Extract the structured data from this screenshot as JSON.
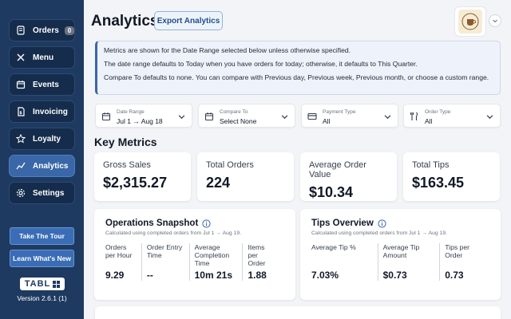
{
  "sidebar": {
    "items": [
      {
        "label": "Orders",
        "badge": "0",
        "icon": "orders-icon"
      },
      {
        "label": "Menu",
        "icon": "utensils-icon"
      },
      {
        "label": "Events",
        "icon": "calendar-icon"
      },
      {
        "label": "Invoicing",
        "icon": "invoice-icon"
      },
      {
        "label": "Loyalty",
        "icon": "star-icon"
      },
      {
        "label": "Analytics",
        "icon": "chart-line-icon",
        "active": true
      },
      {
        "label": "Settings",
        "icon": "gear-icon"
      }
    ],
    "tour_label": "Take The Tour",
    "whats_new_label": "Learn What's New",
    "logo_text": "TABL",
    "version": "Version 2.6.1 (1)"
  },
  "header": {
    "title": "Analytics",
    "export_label": "Export Analytics"
  },
  "info": {
    "line1": "Metrics are shown for the Date Range selected below unless otherwise specified.",
    "line2": "The date range defaults to Today when you have orders for today; otherwise, it defaults to This Quarter.",
    "line3": "Compare To defaults to none. You can compare with Previous day, Previous week, Previous month, or choose a custom range."
  },
  "filters": [
    {
      "label": "Date Range",
      "value": "Jul 1 → Aug 18",
      "icon": "calendar-icon"
    },
    {
      "label": "Compare To",
      "value": "Select None",
      "icon": "calendar-icon"
    },
    {
      "label": "Payment Type",
      "value": "All",
      "icon": "credit-card-icon"
    },
    {
      "label": "Order Type",
      "value": "All",
      "icon": "utensils-icon"
    }
  ],
  "key_metrics": {
    "title": "Key Metrics",
    "items": [
      {
        "label": "Gross Sales",
        "value": "$2,315.27"
      },
      {
        "label": "Total Orders",
        "value": "224"
      },
      {
        "label": "Average Order Value",
        "value": "$10.34"
      },
      {
        "label": "Total Tips",
        "value": "$163.45"
      }
    ]
  },
  "operations": {
    "title": "Operations Snapshot",
    "subtitle": "Calculated using completed orders from Jul 1 → Aug 19.",
    "cols": [
      {
        "label": "Orders per Hour",
        "value": "9.29"
      },
      {
        "label": "Order Entry Time",
        "value": "--"
      },
      {
        "label": "Average Completion Time",
        "value": "10m 21s"
      },
      {
        "label": "Items per Order",
        "value": "1.88"
      }
    ]
  },
  "tips": {
    "title": "Tips Overview",
    "subtitle": "Calculated using completed orders from Jul 1 → Aug 19.",
    "cols": [
      {
        "label": "Average Tip %",
        "value": "7.03%"
      },
      {
        "label": "Average Tip Amount",
        "value": "$0.73"
      },
      {
        "label": "Tips per Order",
        "value": "0.73"
      }
    ]
  },
  "colors": {
    "sidebar_bg": "#1e3a60",
    "accent": "#3a67a8"
  }
}
